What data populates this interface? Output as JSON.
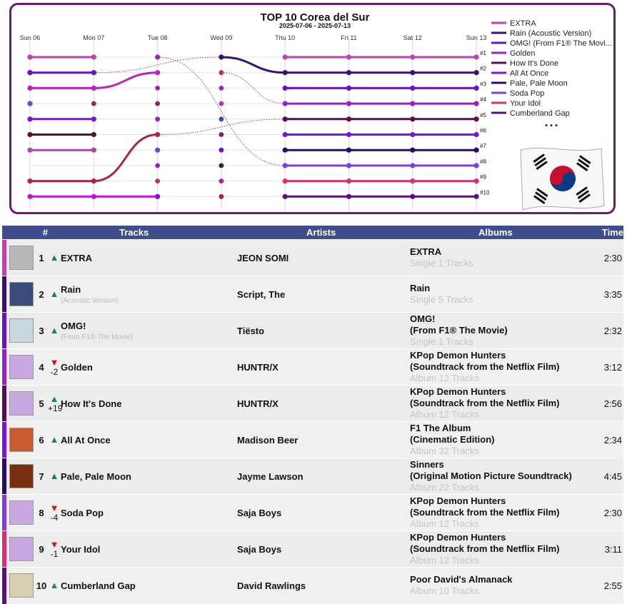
{
  "chart_data": {
    "type": "line",
    "title": "TOP 10 Corea del Sur",
    "subtitle": "2025-07-06 - 2025-07-13",
    "x": [
      "Sun 06",
      "Mon 07",
      "Tue 08",
      "Wed 09",
      "Thu 10",
      "Fri 11",
      "Sat 12",
      "Sun 13"
    ],
    "rank_labels": [
      "#1",
      "#2",
      "#3",
      "#4",
      "#5",
      "#6",
      "#7",
      "#8",
      "#9",
      "#10"
    ],
    "ylim": [
      1,
      10
    ],
    "y_reversed": true,
    "grid": true,
    "legend_position": "right",
    "legend_more": "• • •",
    "series": [
      {
        "name": "EXTRA",
        "color": "#c040b0",
        "ranks": [
          1,
          1,
          null,
          null,
          1,
          1,
          1,
          1
        ]
      },
      {
        "name": "Rain (Acoustic Version)",
        "color": "#3a1070",
        "ranks": [
          null,
          null,
          null,
          1,
          2,
          2,
          2,
          2
        ]
      },
      {
        "name": "OMG! (From F1® The Movi...",
        "color": "#6a10c8",
        "ranks": [
          2,
          2,
          null,
          null,
          3,
          3,
          3,
          3
        ]
      },
      {
        "name": "Golden",
        "color": "#9a20c8",
        "ranks": [
          null,
          null,
          1,
          null,
          4,
          4,
          4,
          4
        ]
      },
      {
        "name": "How It's Done",
        "color": "#5a0d52",
        "ranks": [
          null,
          null,
          null,
          null,
          5,
          5,
          5,
          5
        ]
      },
      {
        "name": "All At Once",
        "color": "#8010e0",
        "ranks": [
          5,
          5,
          null,
          null,
          6,
          6,
          6,
          6
        ]
      },
      {
        "name": "Pale, Pale Moon",
        "color": "#2a0a6a",
        "ranks": [
          null,
          null,
          null,
          null,
          7,
          7,
          7,
          7
        ]
      },
      {
        "name": "Soda Pop",
        "color": "#7a40e0",
        "ranks": [
          4,
          null,
          7,
          null,
          8,
          8,
          8,
          8
        ]
      },
      {
        "name": "Your Idol",
        "color": "#d83070",
        "ranks": [
          null,
          null,
          null,
          null,
          9,
          9,
          9,
          9
        ]
      },
      {
        "name": "Cumberland Gap",
        "color": "#5a1080",
        "ranks": [
          null,
          null,
          null,
          null,
          10,
          10,
          10,
          10
        ]
      }
    ],
    "extra_series": [
      {
        "color": "#e8408a",
        "ranks": [
          1,
          1
        ]
      },
      {
        "color": "#7010b0",
        "ranks": [
          2,
          null,
          null
        ]
      },
      {
        "color": "#c020c0",
        "ranks": [
          3,
          3,
          2
        ]
      },
      {
        "color": "#7a2070",
        "ranks": [
          4,
          null
        ]
      },
      {
        "color": "#5a1020",
        "ranks": [
          6,
          6
        ]
      },
      {
        "color": "#b840b0",
        "ranks": [
          7,
          7
        ]
      },
      {
        "color": "#b02050",
        "ranks": [
          9,
          9,
          6
        ]
      },
      {
        "color": "#c810d8",
        "ranks": [
          10,
          10,
          10
        ]
      }
    ],
    "dots": [
      {
        "col": 1,
        "rank": 2,
        "color": "#6a10c8"
      },
      {
        "col": 1,
        "rank": 4,
        "color": "#a02060"
      },
      {
        "col": 1,
        "rank": 7,
        "color": "#b840b0"
      },
      {
        "col": 2,
        "rank": 3,
        "color": "#b020a8"
      },
      {
        "col": 2,
        "rank": 4,
        "color": "#8a2070"
      },
      {
        "col": 2,
        "rank": 5,
        "color": "#9a20d0"
      },
      {
        "col": 2,
        "rank": 8,
        "color": "#a020c0"
      },
      {
        "col": 2,
        "rank": 9,
        "color": "#c03060"
      },
      {
        "col": 2,
        "rank": 10,
        "color": "#8810d0"
      },
      {
        "col": 3,
        "rank": 1,
        "color": "#3a1070"
      },
      {
        "col": 3,
        "rank": 2,
        "color": "#c03050"
      },
      {
        "col": 3,
        "rank": 3,
        "color": "#9a20d0"
      },
      {
        "col": 3,
        "rank": 4,
        "color": "#c030a0"
      },
      {
        "col": 3,
        "rank": 5,
        "color": "#3050a0"
      },
      {
        "col": 3,
        "rank": 6,
        "color": "#7a2070"
      },
      {
        "col": 3,
        "rank": 7,
        "color": "#7010c0"
      },
      {
        "col": 3,
        "rank": 8,
        "color": "#302040"
      },
      {
        "col": 3,
        "rank": 9,
        "color": "#b020b0"
      },
      {
        "col": 3,
        "rank": 10,
        "color": "#b02040"
      }
    ]
  },
  "table": {
    "headers": {
      "rank": "#",
      "tracks": "Tracks",
      "artists": "Artists",
      "albums": "Albums",
      "time": "Time"
    },
    "rows": [
      {
        "pos": "1",
        "dir": "up",
        "change": "",
        "title": "EXTRA",
        "subtitle": "",
        "artist": "JEON SOMI",
        "album_lines": [
          "EXTRA"
        ],
        "album_meta": "Single 1 Tracks",
        "time": "2:30",
        "stripe": "#c040b0",
        "thumb": "#b8b8b8"
      },
      {
        "pos": "2",
        "dir": "up",
        "change": "",
        "title": "Rain",
        "subtitle": "(Acoustic Version)",
        "artist": "Script, The",
        "album_lines": [
          "Rain"
        ],
        "album_meta": "Single 5 Tracks",
        "time": "3:35",
        "stripe": "#3a1070",
        "thumb": "#3a4a7a"
      },
      {
        "pos": "3",
        "dir": "up",
        "change": "",
        "title": "OMG!",
        "subtitle": "(From F1® The Movie)",
        "artist": "Tiësto",
        "album_lines": [
          "OMG!",
          "(From F1® The Movie)"
        ],
        "album_meta": "Single 1 Tracks",
        "time": "2:32",
        "stripe": "#6a10c8",
        "thumb": "#c8d8e0"
      },
      {
        "pos": "4",
        "dir": "down",
        "change": "-2",
        "title": "Golden",
        "subtitle": "",
        "artist": "HUNTR/X",
        "album_lines": [
          "KPop Demon Hunters",
          "(Soundtrack from the Netflix Film)"
        ],
        "album_meta": "Album 12 Tracks",
        "time": "3:12",
        "stripe": "#9a20c8",
        "thumb": "#c8a8e0"
      },
      {
        "pos": "5",
        "dir": "up",
        "change": "+19",
        "title": "How It's Done",
        "subtitle": "",
        "artist": "HUNTR/X",
        "album_lines": [
          "KPop Demon Hunters",
          "(Soundtrack from the Netflix Film)"
        ],
        "album_meta": "Album 12 Tracks",
        "time": "2:56",
        "stripe": "#5a0d52",
        "thumb": "#c8a8e0"
      },
      {
        "pos": "6",
        "dir": "up",
        "change": "",
        "title": "All At Once",
        "subtitle": "",
        "artist": "Madison Beer",
        "album_lines": [
          "F1 The Album",
          "(Cinematic Edition)"
        ],
        "album_meta": "Album 32 Tracks",
        "time": "2:34",
        "stripe": "#8010e0",
        "thumb": "#c85a30"
      },
      {
        "pos": "7",
        "dir": "up",
        "change": "",
        "title": "Pale, Pale Moon",
        "subtitle": "",
        "artist": "Jayme Lawson",
        "album_lines": [
          "Sinners",
          "(Original Motion Picture Soundtrack)"
        ],
        "album_meta": "Album 22 Tracks",
        "time": "4:45",
        "stripe": "#2a0a6a",
        "thumb": "#7a3010"
      },
      {
        "pos": "8",
        "dir": "down",
        "change": "-4",
        "title": "Soda Pop",
        "subtitle": "",
        "artist": "Saja Boys",
        "album_lines": [
          "KPop Demon Hunters",
          "(Soundtrack from the Netflix Film)"
        ],
        "album_meta": "Album 12 Tracks",
        "time": "2:30",
        "stripe": "#7a40e0",
        "thumb": "#c8a8e0"
      },
      {
        "pos": "9",
        "dir": "down",
        "change": "-1",
        "title": "Your Idol",
        "subtitle": "",
        "artist": "Saja Boys",
        "album_lines": [
          "KPop Demon Hunters",
          "(Soundtrack from the Netflix Film)"
        ],
        "album_meta": "Album 12 Tracks",
        "time": "3:11",
        "stripe": "#d83070",
        "thumb": "#c8a8e0"
      },
      {
        "pos": "10",
        "dir": "up",
        "change": "",
        "title": "Cumberland Gap",
        "subtitle": "",
        "artist": "David Rawlings",
        "album_lines": [
          "Poor David's Almanack"
        ],
        "album_meta": "Album 10 Tracks",
        "time": "2:55",
        "stripe": "#5a1080",
        "thumb": "#d8d0b0"
      }
    ]
  }
}
